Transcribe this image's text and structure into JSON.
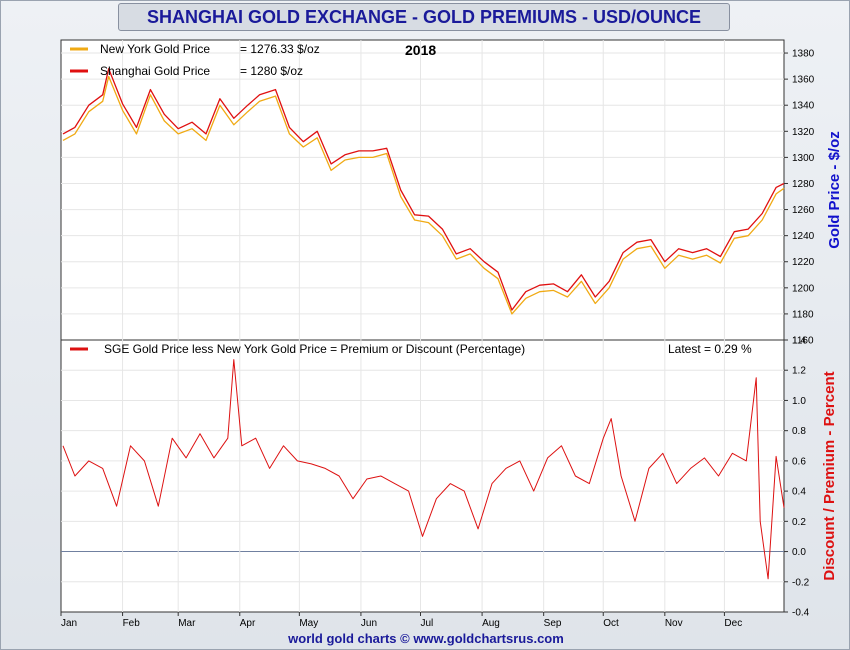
{
  "title": "SHANGHAI GOLD EXCHANGE - GOLD PREMIUMS - USD/OUNCE",
  "footer": "world gold charts © www.goldchartsrus.com",
  "colors": {
    "ny": "#f0aa14",
    "sge": "#e01010",
    "premium": "#dd1111",
    "zero_line": "#7080a0",
    "ylabel_top": "#1111cc",
    "ylabel_bottom": "#dd1111"
  },
  "chart_data": [
    {
      "type": "line",
      "title": "2018",
      "ylabel": "Gold Price - $/oz",
      "ylim": [
        1160,
        1390
      ],
      "yticks": [
        1160,
        1180,
        1200,
        1220,
        1240,
        1260,
        1280,
        1300,
        1320,
        1340,
        1360,
        1380
      ],
      "legend": [
        {
          "name": "New York Gold Price",
          "value_label": "= 1276.33 $/oz"
        },
        {
          "name": "Shanghai Gold Price",
          "value_label": "= 1280 $/oz"
        }
      ],
      "x_months": [
        "Jan",
        "Feb",
        "Mar",
        "Apr",
        "May",
        "Jun",
        "Jul",
        "Aug",
        "Sep",
        "Oct",
        "Nov",
        "Dec"
      ],
      "x": [
        "2018-01-02",
        "2018-01-08",
        "2018-01-15",
        "2018-01-22",
        "2018-01-25",
        "2018-02-01",
        "2018-02-08",
        "2018-02-15",
        "2018-02-22",
        "2018-03-01",
        "2018-03-08",
        "2018-03-15",
        "2018-03-22",
        "2018-03-29",
        "2018-04-05",
        "2018-04-11",
        "2018-04-19",
        "2018-04-26",
        "2018-05-03",
        "2018-05-10",
        "2018-05-17",
        "2018-05-24",
        "2018-05-31",
        "2018-06-07",
        "2018-06-14",
        "2018-06-21",
        "2018-06-28",
        "2018-07-05",
        "2018-07-12",
        "2018-07-19",
        "2018-07-26",
        "2018-08-02",
        "2018-08-09",
        "2018-08-16",
        "2018-08-23",
        "2018-08-30",
        "2018-09-06",
        "2018-09-13",
        "2018-09-20",
        "2018-09-27",
        "2018-10-04",
        "2018-10-11",
        "2018-10-18",
        "2018-10-25",
        "2018-11-01",
        "2018-11-08",
        "2018-11-15",
        "2018-11-22",
        "2018-11-29",
        "2018-12-06",
        "2018-12-13",
        "2018-12-20",
        "2018-12-27",
        "2018-12-31"
      ],
      "series": [
        {
          "name": "New York Gold Price",
          "values": [
            1313,
            1318,
            1335,
            1343,
            1362,
            1336,
            1318,
            1348,
            1328,
            1318,
            1322,
            1313,
            1340,
            1325,
            1335,
            1343,
            1347,
            1318,
            1308,
            1315,
            1290,
            1298,
            1300,
            1300,
            1303,
            1270,
            1252,
            1250,
            1240,
            1222,
            1226,
            1215,
            1207,
            1180,
            1192,
            1197,
            1198,
            1193,
            1205,
            1188,
            1200,
            1222,
            1230,
            1232,
            1215,
            1225,
            1222,
            1225,
            1219,
            1238,
            1240,
            1252,
            1272,
            1276.33
          ]
        },
        {
          "name": "Shanghai Gold Price",
          "values": [
            1318,
            1323,
            1340,
            1348,
            1368,
            1341,
            1323,
            1352,
            1333,
            1322,
            1327,
            1318,
            1345,
            1330,
            1340,
            1348,
            1352,
            1323,
            1312,
            1320,
            1295,
            1302,
            1305,
            1305,
            1307,
            1275,
            1256,
            1255,
            1245,
            1226,
            1230,
            1220,
            1212,
            1183,
            1197,
            1202,
            1203,
            1197,
            1210,
            1193,
            1205,
            1227,
            1235,
            1237,
            1220,
            1230,
            1227,
            1230,
            1224,
            1243,
            1245,
            1257,
            1277,
            1280
          ]
        }
      ]
    },
    {
      "type": "line",
      "legend": [
        {
          "name": "SGE Gold Price less New York Gold Price = Premium or Discount (Percentage)"
        }
      ],
      "latest_label": "Latest = 0.29 %",
      "ylabel": "Discount / Premium - Percent",
      "ylim": [
        -0.4,
        1.4
      ],
      "yticks": [
        -0.4,
        -0.2,
        0.0,
        0.2,
        0.4,
        0.6,
        0.8,
        1.0,
        1.2,
        1.4
      ],
      "x": [
        "2018-01-02",
        "2018-01-08",
        "2018-01-15",
        "2018-01-22",
        "2018-01-29",
        "2018-02-05",
        "2018-02-12",
        "2018-02-19",
        "2018-02-26",
        "2018-03-05",
        "2018-03-12",
        "2018-03-19",
        "2018-03-26",
        "2018-03-29",
        "2018-04-02",
        "2018-04-09",
        "2018-04-16",
        "2018-04-23",
        "2018-04-30",
        "2018-05-07",
        "2018-05-14",
        "2018-05-21",
        "2018-05-28",
        "2018-06-04",
        "2018-06-11",
        "2018-06-18",
        "2018-06-25",
        "2018-07-02",
        "2018-07-09",
        "2018-07-16",
        "2018-07-23",
        "2018-07-30",
        "2018-08-06",
        "2018-08-13",
        "2018-08-20",
        "2018-08-27",
        "2018-09-03",
        "2018-09-10",
        "2018-09-17",
        "2018-09-24",
        "2018-10-01",
        "2018-10-05",
        "2018-10-10",
        "2018-10-17",
        "2018-10-24",
        "2018-10-31",
        "2018-11-07",
        "2018-11-14",
        "2018-11-21",
        "2018-11-28",
        "2018-12-05",
        "2018-12-12",
        "2018-12-17",
        "2018-12-19",
        "2018-12-23",
        "2018-12-27",
        "2018-12-31"
      ],
      "series": [
        {
          "name": "Premium",
          "values": [
            0.7,
            0.5,
            0.6,
            0.55,
            0.3,
            0.7,
            0.6,
            0.3,
            0.75,
            0.62,
            0.78,
            0.62,
            0.75,
            1.27,
            0.7,
            0.75,
            0.55,
            0.7,
            0.6,
            0.58,
            0.55,
            0.5,
            0.35,
            0.48,
            0.5,
            0.45,
            0.4,
            0.1,
            0.35,
            0.45,
            0.4,
            0.15,
            0.45,
            0.55,
            0.6,
            0.4,
            0.62,
            0.7,
            0.5,
            0.45,
            0.75,
            0.88,
            0.5,
            0.2,
            0.55,
            0.65,
            0.45,
            0.55,
            0.62,
            0.5,
            0.65,
            0.6,
            1.15,
            0.2,
            -0.18,
            0.63,
            0.29
          ]
        }
      ]
    }
  ]
}
